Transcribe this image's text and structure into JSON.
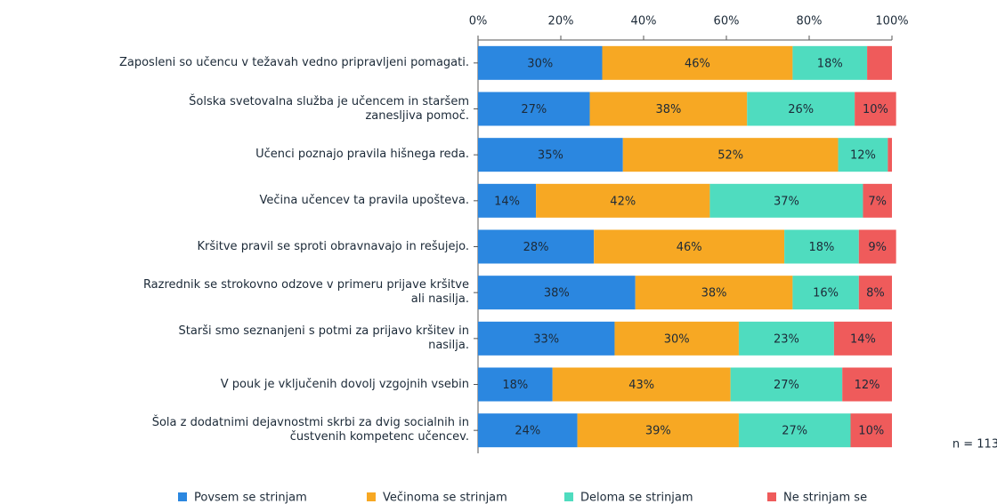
{
  "chart_data": {
    "type": "stacked-bar-horizontal",
    "categories": [
      "Zaposleni so učencu v težavah vedno pripravljeni pomagati.",
      "Šolska svetovalna služba je učencem in staršem\nzanesljiva pomoč.",
      "Učenci poznajo pravila hišnega reda.",
      "Večina učencev ta pravila upošteva.",
      "Kršitve pravil se sproti obravnavajo in rešujejo.",
      "Razrednik se strokovno odzove v primeru prijave kršitve\nali nasilja.",
      "Starši smo seznanjeni s potmi za prijavo kršitev in\nnasilja.",
      "V pouk je vključenih dovolj vzgojnih vsebin",
      "Šola z dodatnimi dejavnostmi skrbi za dvig socialnih in\nčustvenih kompetenc učencev."
    ],
    "series": [
      {
        "name": "Povsem se strinjam",
        "color": "#2b87e0",
        "values": [
          30,
          27,
          35,
          14,
          28,
          38,
          33,
          18,
          24
        ],
        "value_labels": [
          "30%",
          "27%",
          "35%",
          "14%",
          "28%",
          "38%",
          "33%",
          "18%",
          "24%"
        ]
      },
      {
        "name": "Večinoma se strinjam",
        "color": "#f7a823",
        "values": [
          46,
          38,
          52,
          42,
          46,
          38,
          30,
          43,
          39
        ],
        "value_labels": [
          "46%",
          "38%",
          "52%",
          "42%",
          "46%",
          "38%",
          "30%",
          "43%",
          "39%"
        ]
      },
      {
        "name": "Deloma se strinjam",
        "color": "#4fdcbf",
        "values": [
          18,
          26,
          12,
          37,
          18,
          16,
          23,
          27,
          27
        ],
        "value_labels": [
          "18%",
          "26%",
          "12%",
          "37%",
          "18%",
          "16%",
          "23%",
          "27%",
          "27%"
        ]
      },
      {
        "name": "Ne strinjam se",
        "color": "#ef5b5b",
        "values": [
          6,
          10,
          1,
          7,
          9,
          8,
          14,
          12,
          10
        ],
        "value_labels": [
          null,
          "10%",
          null,
          "7%",
          "9%",
          "8%",
          "14%",
          "12%",
          "10%"
        ]
      }
    ],
    "xlim": [
      0,
      100
    ],
    "xticks": [
      {
        "value": 0,
        "label": "0%"
      },
      {
        "value": 20,
        "label": "20%"
      },
      {
        "value": 40,
        "label": "40%"
      },
      {
        "value": 60,
        "label": "60%"
      },
      {
        "value": 80,
        "label": "80%"
      },
      {
        "value": 100,
        "label": "100%"
      }
    ],
    "annotation": "n = 113",
    "legend": "bottom"
  }
}
